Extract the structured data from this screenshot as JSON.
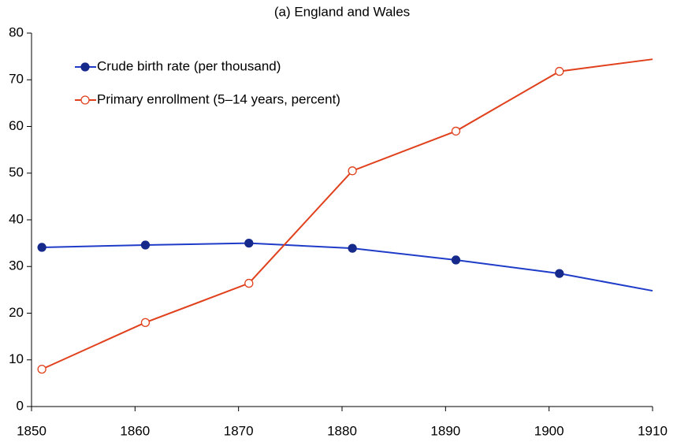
{
  "chart_data": {
    "type": "line",
    "title": "(a) England and Wales",
    "x": [
      1851,
      1861,
      1871,
      1881,
      1891,
      1901,
      1910
    ],
    "series": [
      {
        "name": "Crude birth rate (per thousand)",
        "color": "#1f3cc8",
        "marker_color": "#162a8c",
        "marker_fill": "filled",
        "values": [
          34.1,
          34.6,
          35.0,
          33.9,
          31.4,
          28.5,
          24.8
        ],
        "markers": [
          true,
          true,
          true,
          true,
          true,
          true,
          false
        ]
      },
      {
        "name": "Primary enrollment (5–14 years, percent)",
        "color": "#e0411c",
        "marker_color": "#e0411c",
        "marker_fill": "hollow",
        "values": [
          8.0,
          18.0,
          26.4,
          50.5,
          59.0,
          71.8,
          74.4
        ],
        "markers": [
          true,
          true,
          true,
          true,
          true,
          true,
          false
        ]
      }
    ],
    "xlim": [
      1850,
      1910
    ],
    "xticks": [
      1850,
      1860,
      1870,
      1880,
      1890,
      1900,
      1910
    ],
    "ylim": [
      0,
      80
    ],
    "yticks": [
      0,
      10,
      20,
      30,
      40,
      50,
      60,
      70,
      80
    ],
    "grid": false,
    "legend": "upper left"
  }
}
